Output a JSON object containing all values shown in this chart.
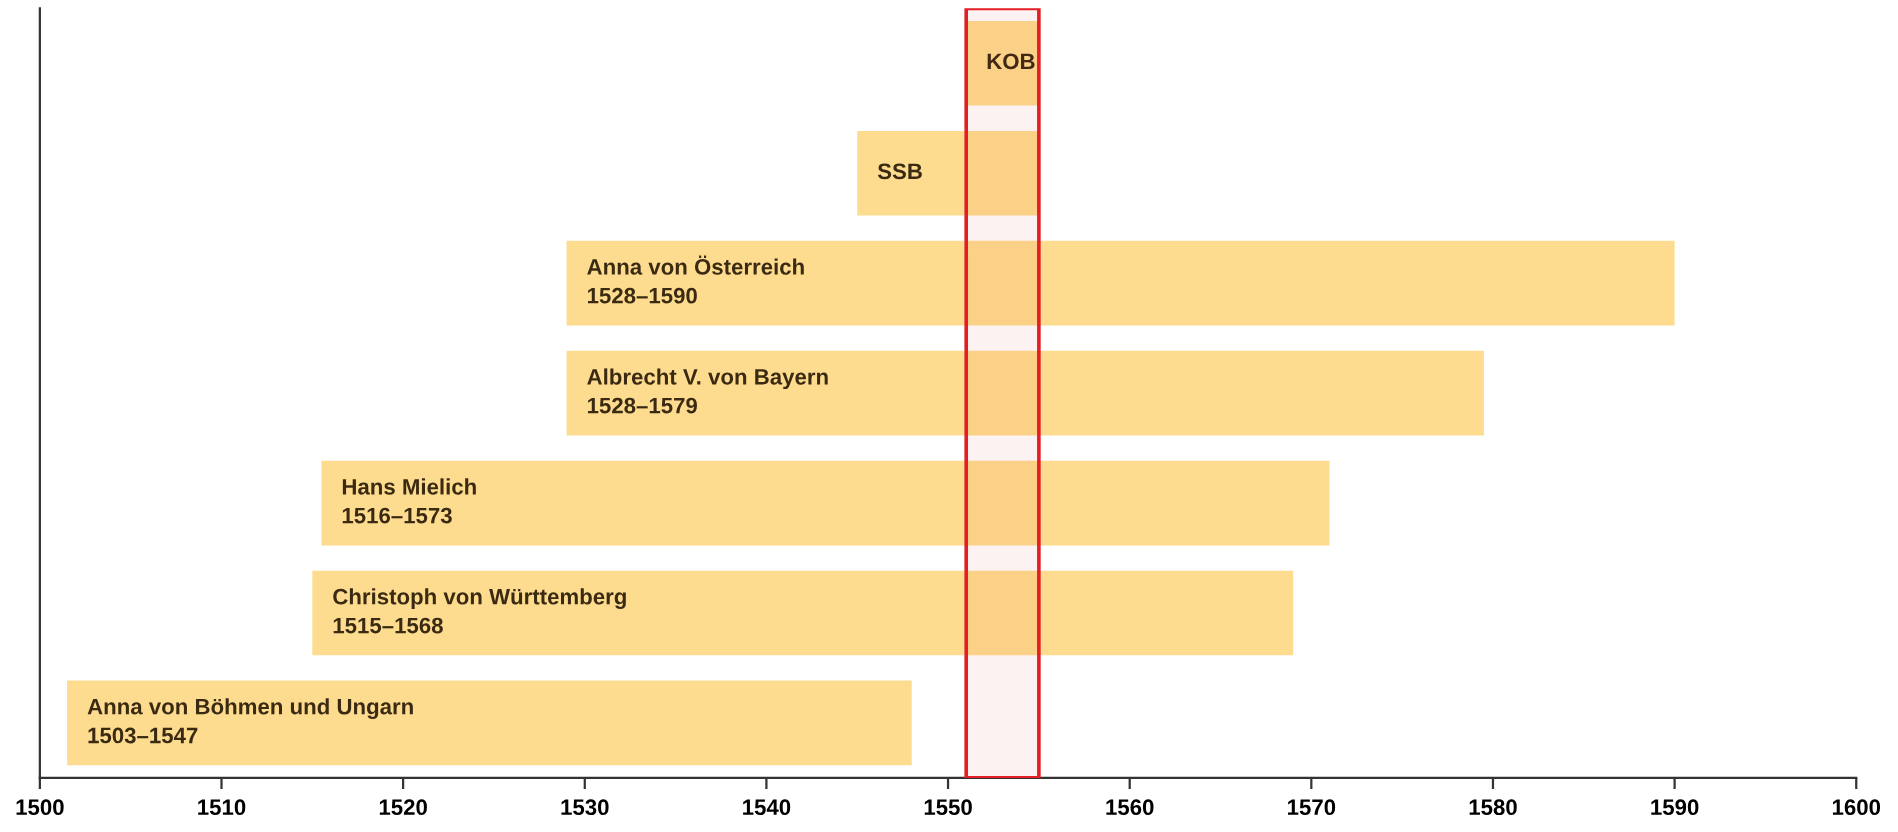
{
  "chart_data": {
    "type": "bar",
    "orientation": "horizontal",
    "categories": [
      "KOB",
      "SSB",
      "Anna von Österreich\n1528–1590",
      "Albrecht V. von Bayern\n1528–1579",
      "Hans Mielich\n1516–1573",
      "Christoph von Württemberg\n1515–1568",
      "Anna von Böhmen und Ungarn\n1503–1547"
    ],
    "base": [
      1551,
      1545,
      1529,
      1529,
      1515.5,
      1515,
      1501.5
    ],
    "values": [
      4,
      10,
      61,
      50.5,
      55.5,
      54,
      46.5
    ],
    "color": "#fddc8f",
    "xlim": [
      1500,
      1600
    ],
    "xticks": [
      1500,
      1510,
      1520,
      1530,
      1540,
      1550,
      1560,
      1570,
      1580,
      1590,
      1600
    ],
    "bands": [
      {
        "axis": "x",
        "from": 1551,
        "to": 1555,
        "color": "#e31e24"
      }
    ],
    "grid": false
  }
}
